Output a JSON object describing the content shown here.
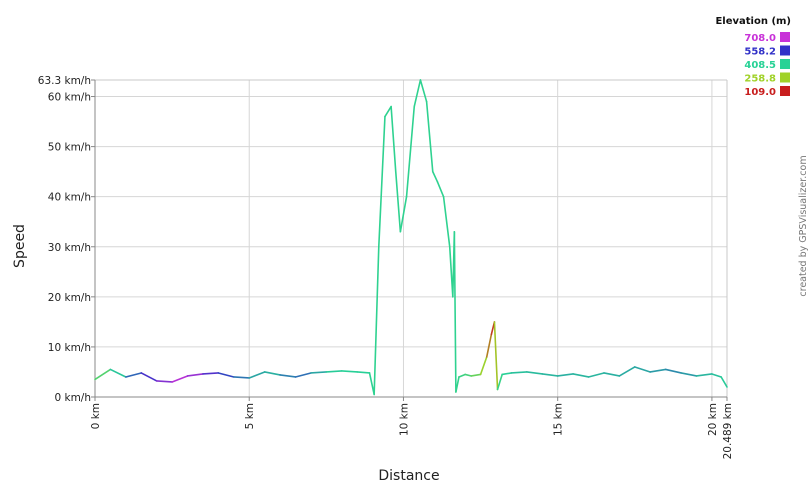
{
  "chart_data": {
    "type": "line",
    "xlabel": "Distance",
    "ylabel": "Speed",
    "x_unit": "km",
    "y_unit": "km/h",
    "xlim": [
      0,
      20.489
    ],
    "ylim": [
      0,
      63.3
    ],
    "x_ticks": [
      {
        "value": 0,
        "label": "0 km"
      },
      {
        "value": 5,
        "label": "5 km"
      },
      {
        "value": 10,
        "label": "10 km"
      },
      {
        "value": 15,
        "label": "15 km"
      },
      {
        "value": 20,
        "label": "20 km"
      },
      {
        "value": 20.489,
        "label": "20.489 km"
      }
    ],
    "y_ticks": [
      {
        "value": 0,
        "label": "0 km/h"
      },
      {
        "value": 10,
        "label": "10 km/h"
      },
      {
        "value": 20,
        "label": "20 km/h"
      },
      {
        "value": 30,
        "label": "30 km/h"
      },
      {
        "value": 40,
        "label": "40 km/h"
      },
      {
        "value": 50,
        "label": "50 km/h"
      },
      {
        "value": 60,
        "label": "60 km/h"
      },
      {
        "value": 63.3,
        "label": "63.3 km/h"
      }
    ],
    "grid": true,
    "color_scale": {
      "title": "Elevation (m)",
      "placement": "top-right",
      "entries": [
        {
          "label": "708.0",
          "color": "#c832d8"
        },
        {
          "label": "558.2",
          "color": "#3232c8"
        },
        {
          "label": "408.5",
          "color": "#28d296"
        },
        {
          "label": "258.8",
          "color": "#a0d228"
        },
        {
          "label": "109.0",
          "color": "#c81e1e"
        }
      ]
    },
    "series": [
      {
        "x": [
          0.0,
          0.5,
          1.0,
          1.5,
          2.0,
          2.5,
          3.0,
          3.5,
          4.0,
          4.5,
          5.0,
          5.5,
          6.0,
          6.5,
          7.0,
          7.5,
          8.0,
          8.5,
          8.9,
          9.05,
          9.2,
          9.4,
          9.6,
          9.75,
          9.9,
          10.1,
          10.35,
          10.55,
          10.75,
          10.95,
          11.1,
          11.3,
          11.5,
          11.6,
          11.65,
          11.7,
          11.8,
          12.0,
          12.2,
          12.5,
          12.7,
          12.85,
          12.95,
          13.05,
          13.2,
          13.5,
          14.0,
          14.5,
          15.0,
          15.5,
          16.0,
          16.5,
          17.0,
          17.5,
          18.0,
          18.5,
          19.0,
          19.5,
          20.0,
          20.3,
          20.489
        ],
        "y": [
          3.5,
          5.5,
          4.0,
          4.8,
          3.2,
          3.0,
          4.2,
          4.6,
          4.8,
          4.0,
          3.8,
          5.0,
          4.4,
          4.0,
          4.8,
          5.0,
          5.2,
          5.0,
          4.8,
          0.5,
          30.0,
          56.0,
          58.0,
          45.0,
          33.0,
          40.0,
          58.0,
          63.3,
          59.0,
          45.0,
          43.0,
          40.0,
          30.0,
          20.0,
          33.0,
          1.0,
          4.0,
          4.5,
          4.2,
          4.5,
          8.0,
          12.5,
          15.0,
          1.5,
          4.5,
          4.8,
          5.0,
          4.6,
          4.2,
          4.6,
          4.0,
          4.8,
          4.2,
          6.0,
          5.0,
          5.5,
          4.8,
          4.2,
          4.6,
          4.0,
          2.0
        ],
        "elevation": [
          330,
          380,
          460,
          560,
          600,
          680,
          700,
          620,
          560,
          520,
          470,
          430,
          450,
          520,
          480,
          420,
          410,
          410,
          410,
          400,
          400,
          400,
          400,
          400,
          400,
          400,
          400,
          400,
          400,
          400,
          400,
          400,
          400,
          400,
          400,
          400,
          390,
          380,
          360,
          300,
          230,
          150,
          115,
          380,
          400,
          420,
          430,
          430,
          440,
          440,
          430,
          440,
          440,
          450,
          450,
          470,
          480,
          440,
          430,
          420,
          410
        ]
      }
    ],
    "credit": "created by GPSVisualizer.com"
  }
}
